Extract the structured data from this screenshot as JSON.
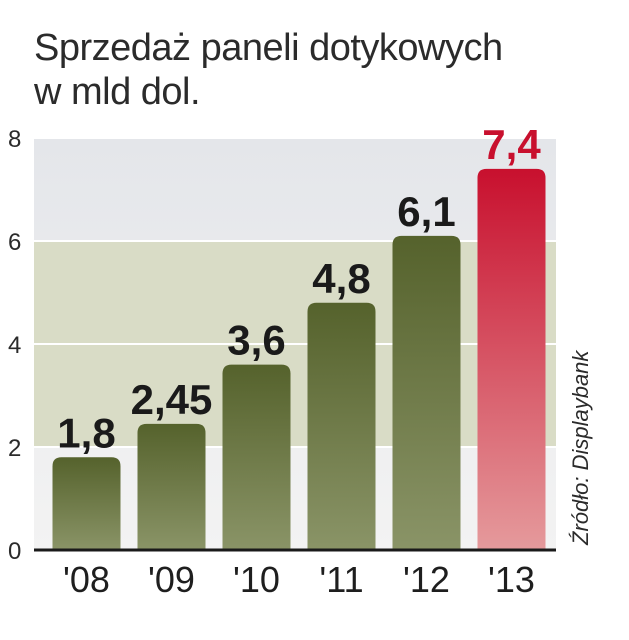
{
  "title_line1": "Sprzedaż paneli dotykowych",
  "title_line2": "w mld dol.",
  "source": "Źródło: Displaybank",
  "colors": {
    "bar": "#55622c",
    "bar_light": "#8a9467",
    "highlight": "#c8102e",
    "highlight_light": "#e59a9c",
    "band": "#d9dcc6",
    "plot_bg": "#e8e9ec",
    "value_highlight": "#c8102e"
  },
  "chart_data": {
    "type": "bar",
    "categories": [
      "'08",
      "'09",
      "'10",
      "'11",
      "'12",
      "'13"
    ],
    "values": [
      1.8,
      2.45,
      3.6,
      4.8,
      6.1,
      7.4
    ],
    "value_labels": [
      "1,8",
      "2,45",
      "3,6",
      "4,8",
      "6,1",
      "7,4"
    ],
    "highlight_index": 5,
    "yticks": [
      0,
      2,
      4,
      6,
      8
    ],
    "ylim": [
      0,
      8
    ],
    "grid": true,
    "legend": "none"
  }
}
